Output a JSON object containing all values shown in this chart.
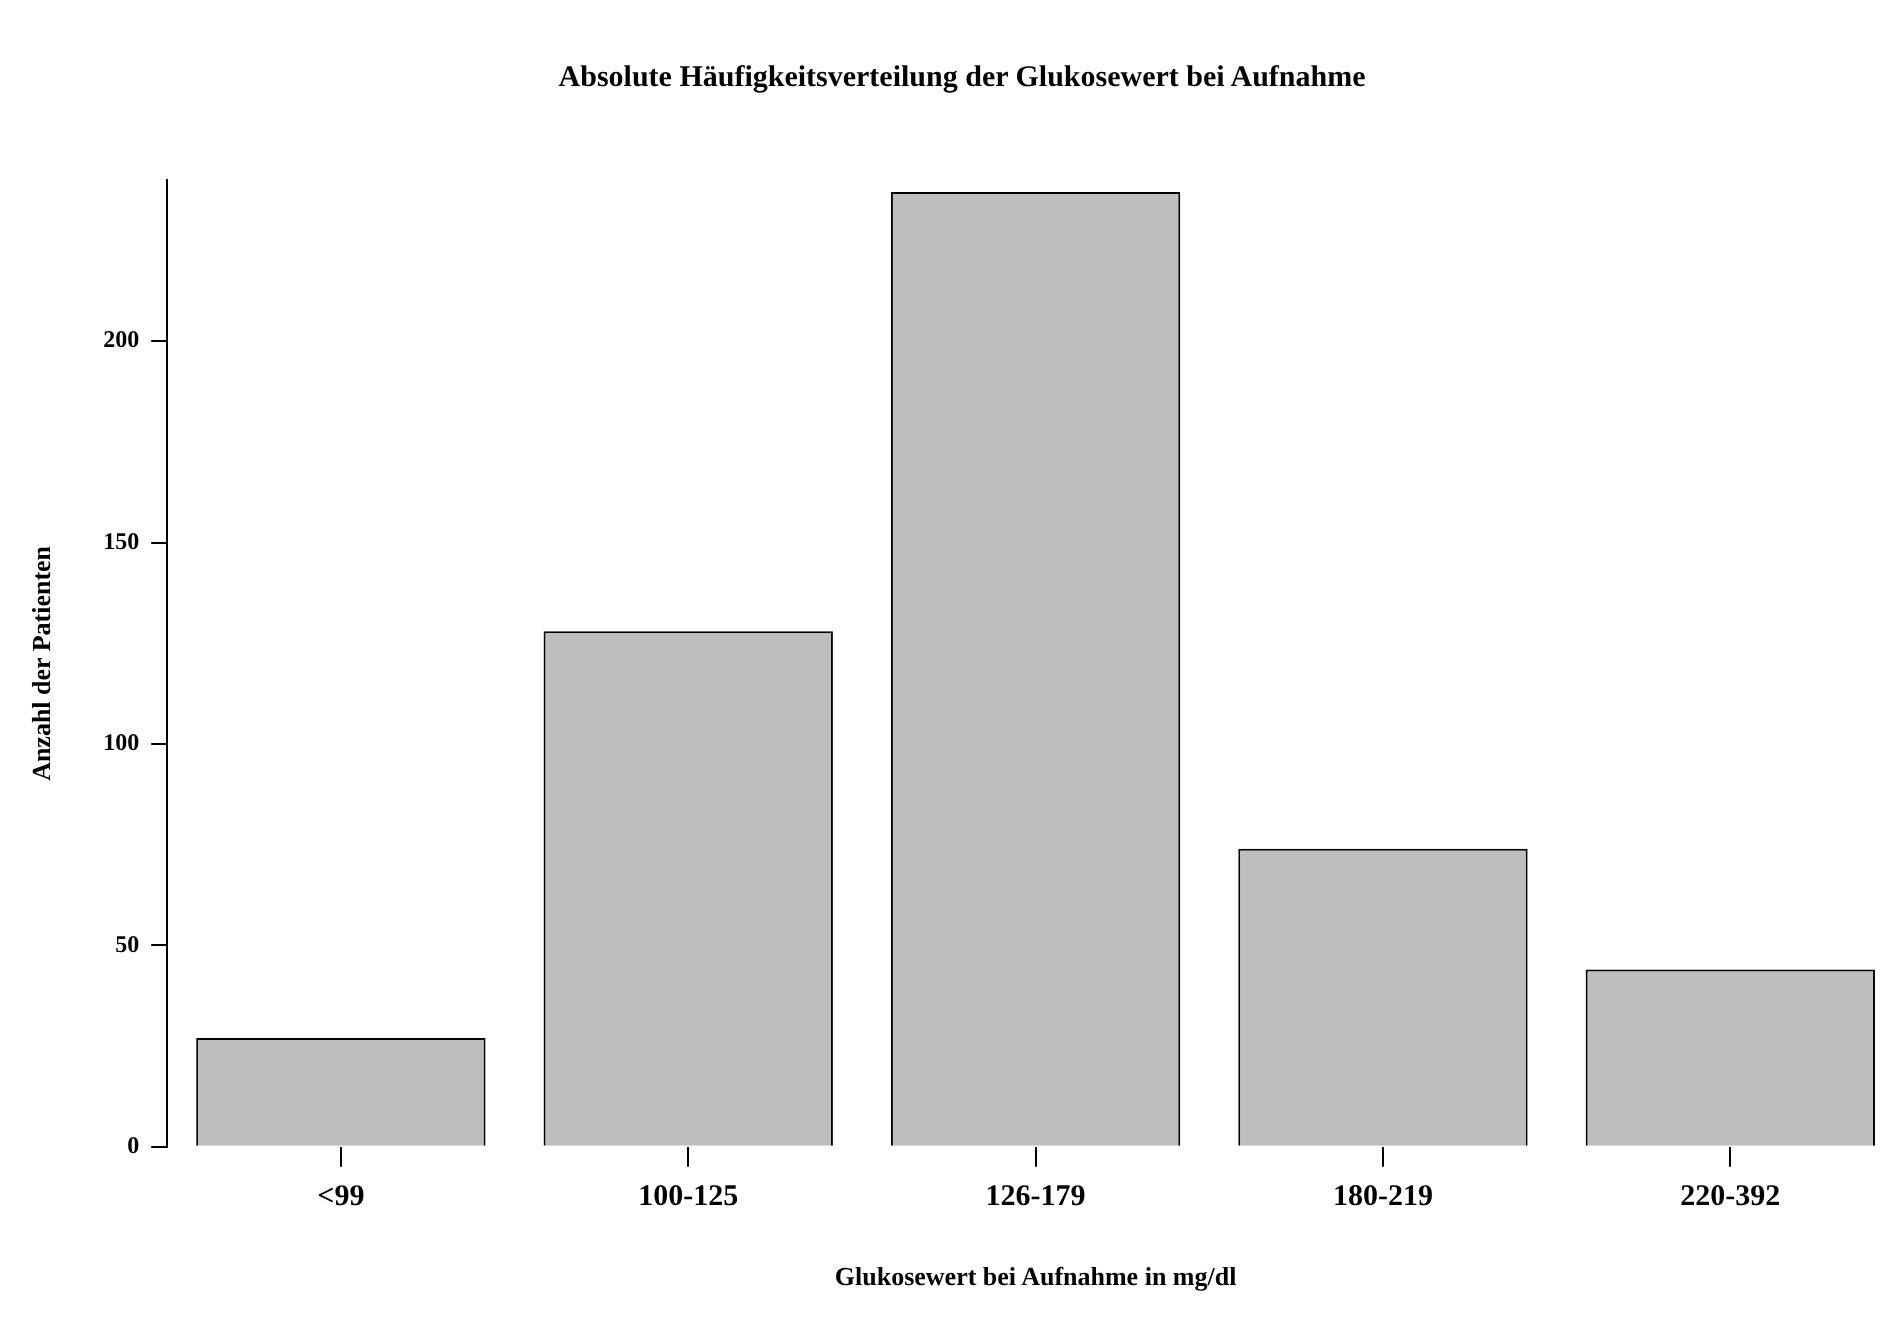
{
  "chart_data": {
    "type": "bar",
    "title": "Absolute Häufigkeitsverteilung der Glukosewert bei Aufnahme",
    "xlabel": "Glukosewert bei Aufnahme in mg/dl",
    "ylabel": "Anzahl der Patienten",
    "categories": [
      "<99",
      "100-125",
      "126-179",
      "180-219",
      "220-392"
    ],
    "values": [
      27,
      128,
      237,
      74,
      44
    ],
    "color": "#bebebe",
    "ylim": [
      0,
      240
    ],
    "yticks": [
      0,
      50,
      100,
      150,
      200
    ],
    "grid": false,
    "legend": false
  }
}
